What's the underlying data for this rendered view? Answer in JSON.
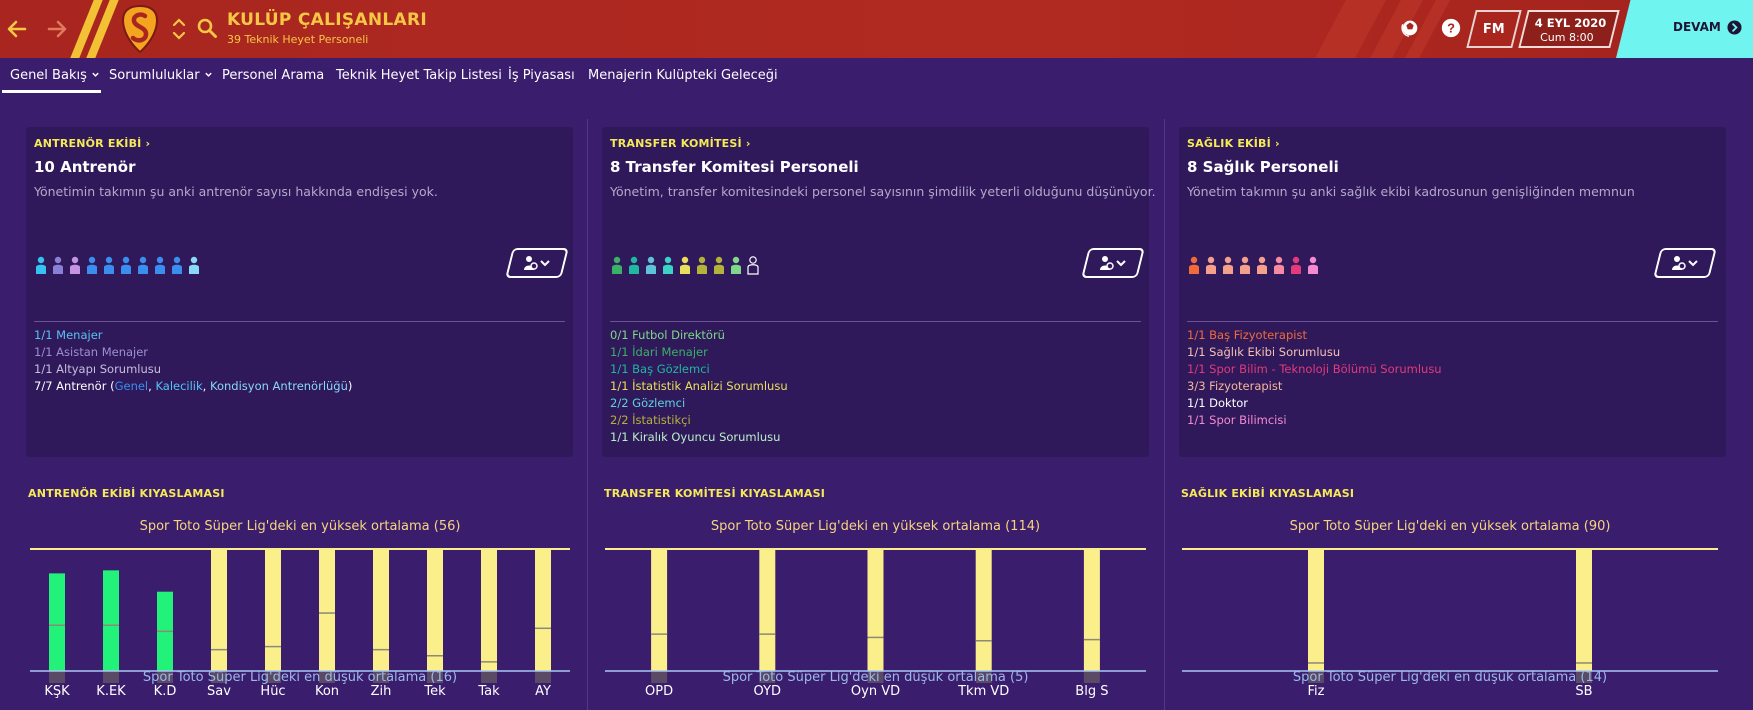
{
  "header": {
    "title": "KULÜP ÇALIŞANLARI",
    "subtitle": "39 Teknik Heyet Personeli",
    "date": "4 EYL 2020",
    "time": "Cum 8:00",
    "fm_label": "FM",
    "continue_label": "DEVAM",
    "icons": [
      "back-arrow-icon",
      "forward-arrow-icon",
      "club-crest-icon",
      "chevron-updown-icon",
      "search-icon",
      "globe-ball-icon",
      "help-icon",
      "continue-arrow-icon"
    ],
    "colors": {
      "bar": "#a8261f",
      "accent": "#f6c744",
      "continue": "#70f4f0"
    }
  },
  "tabs": [
    {
      "label": "Genel Bakış",
      "dropdown": true,
      "active": true
    },
    {
      "label": "Sorumluluklar",
      "dropdown": true
    },
    {
      "label": "Personel Arama"
    },
    {
      "label": "Teknik Heyet Takip Listesi"
    },
    {
      "label": "İş Piyasası"
    },
    {
      "label": "Menajerin Kulüpteki Geleceği"
    }
  ],
  "cards": [
    {
      "heading": "ANTRENÖR EKİBİ",
      "title": "10 Antrenör",
      "desc": "Yönetimin takımın şu anki antrenör sayısı hakkında endişesi yok.",
      "people_colors": [
        "#34c3f0",
        "#8a7fd6",
        "#c493e4",
        "#3a8ef0",
        "#3a8ef0",
        "#3a8ef0",
        "#3a8ef0",
        "#3a8ef0",
        "#3a8ef0",
        "#8ad8f8"
      ],
      "roles": [
        {
          "text": "1/1 Menajer",
          "color": "#57c3f5"
        },
        {
          "text": "1/1 Asistan Menajer",
          "color": "#9c8fd2"
        },
        {
          "text": "1/1 Altyapı Sorumlusu",
          "color": "#c7bedb"
        },
        {
          "text": "7/7 Antrenör (",
          "color": "#ffffff",
          "links": [
            "Genel",
            "Kalecilik",
            "Kondisyon Antrenörlüğü"
          ],
          "link_colors": [
            "#3a8ef0",
            "#57c3f5",
            "#8ad8f8"
          ],
          "sep": ", ",
          "close": ")"
        }
      ]
    },
    {
      "heading": "TRANSFER KOMİTESİ",
      "title": "8 Transfer Komitesi Personeli",
      "desc": "Yönetim, transfer komitesindeki personel sayısının şimdilik yeterli olduğunu düşünüyor.",
      "people_colors": [
        "#3bb067",
        "#1fb8a0",
        "#5fc3d8",
        "#3bd2c8",
        "#e8e05a",
        "#b5b23a",
        "#b5b23a",
        "#7fd88a",
        "#ffffff"
      ],
      "roles": [
        {
          "text": "0/1 Futbol Direktörü",
          "color": "#7fd88a"
        },
        {
          "text": "1/1 İdari Menajer",
          "color": "#3bb067"
        },
        {
          "text": "1/1 Baş Gözlemci",
          "color": "#1fb8a0"
        },
        {
          "text": "1/1 İstatistik Analizi Sorumlusu",
          "color": "#e8e05a"
        },
        {
          "text": "2/2 Gözlemci",
          "color": "#5fd3dc"
        },
        {
          "text": "2/2 İstatistikçi",
          "color": "#b5b23a"
        },
        {
          "text": "1/1 Kiralık Oyuncu Sorumlusu",
          "color": "#b9f0c6"
        }
      ]
    },
    {
      "heading": "SAĞLIK EKİBİ",
      "title": "8 Sağlık Personeli",
      "desc": "Yönetim takımın şu anki sağlık ekibi kadrosunun genişliğinden memnun",
      "people_colors": [
        "#f06a3a",
        "#f5a08a",
        "#f5a08a",
        "#f5a08a",
        "#f5a08a",
        "#f58aa0",
        "#e23a7a",
        "#f58ad0"
      ],
      "roles": [
        {
          "text": "1/1 Baş Fizyoterapist",
          "color": "#f06a3a"
        },
        {
          "text": "1/1 Sağlık Ekibi Sorumlusu",
          "color": "#f5c1b5"
        },
        {
          "text": "1/1 Spor Bilim - Teknoloji Bölümü Sorumlusu",
          "color": "#e23a7a"
        },
        {
          "text": "3/3 Fizyoterapist",
          "color": "#f5b59c"
        },
        {
          "text": "1/1 Doktor",
          "color": "#ffffff"
        },
        {
          "text": "1/1 Spor Bilimcisi",
          "color": "#f58ad0"
        }
      ]
    }
  ],
  "benchmarks": [
    {
      "heading": "ANTRENÖR EKİBİ KIYASLAMASI"
    },
    {
      "heading": "TRANSFER KOMİTESİ KIYASLAMASI"
    },
    {
      "heading": "SAĞLIK EKİBİ KIYASLAMASI"
    }
  ],
  "chart_data": [
    {
      "type": "bar",
      "categories": [
        "KŞK",
        "K.EK",
        "K.D",
        "Sav",
        "Hüc",
        "Kon",
        "Zih",
        "Tek",
        "Tak",
        "AY"
      ],
      "values": [
        48,
        49,
        42,
        56,
        56,
        56,
        56,
        56,
        56,
        56
      ],
      "capped": [
        false,
        false,
        false,
        true,
        true,
        true,
        true,
        true,
        true,
        true
      ],
      "league_avg": [
        31,
        31,
        29,
        23,
        24,
        35,
        23,
        21,
        19,
        30
      ],
      "top_label": "Spor Toto Süper Lig'deki en yüksek ortalama (56)",
      "bottom_label": "Spor Toto Süper Lig'deki en düşük ortalama (16)",
      "ylim": [
        16,
        56
      ]
    },
    {
      "type": "bar",
      "categories": [
        "OPD",
        "OYD",
        "Oyn VD",
        "Tkm VD",
        "Blg S"
      ],
      "values": [
        114,
        114,
        114,
        114,
        114
      ],
      "capped": [
        true,
        true,
        true,
        true,
        true
      ],
      "league_avg": [
        38,
        38,
        35,
        32,
        33
      ],
      "top_label": "Spor Toto Süper Lig'deki en yüksek ortalama (114)",
      "bottom_label": "Spor Toto Süper Lig'deki en düşük ortalama (5)",
      "ylim": [
        5,
        114
      ]
    },
    {
      "type": "bar",
      "categories": [
        "Fiz",
        "SB"
      ],
      "values": [
        90,
        90
      ],
      "capped": [
        true,
        true
      ],
      "league_avg": [
        19,
        19
      ],
      "top_label": "Spor Toto Süper Lig'deki en yüksek ortalama (90)",
      "bottom_label": "Spor Toto Süper Lig'deki en düşük ortalama (14)",
      "ylim": [
        14,
        90
      ]
    }
  ]
}
